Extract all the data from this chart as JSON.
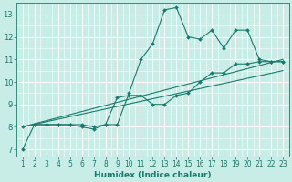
{
  "xlabel": "Humidex (Indice chaleur)",
  "bg_color": "#c8ece6",
  "line_color": "#1a7a6e",
  "grid_color": "#ffffff",
  "xlim": [
    0.5,
    23.5
  ],
  "ylim": [
    6.7,
    13.5
  ],
  "xticks": [
    1,
    2,
    3,
    4,
    5,
    6,
    7,
    8,
    9,
    10,
    11,
    12,
    13,
    14,
    15,
    16,
    17,
    18,
    19,
    20,
    21,
    22,
    23
  ],
  "yticks": [
    7,
    8,
    9,
    10,
    11,
    12,
    13
  ],
  "series1_x": [
    1,
    2,
    3,
    4,
    5,
    6,
    7,
    8,
    9,
    10,
    11,
    12,
    13,
    14,
    15,
    16,
    17,
    18,
    19,
    20,
    21,
    22,
    23
  ],
  "series1_y": [
    7.0,
    8.1,
    8.1,
    8.1,
    8.1,
    8.0,
    7.9,
    8.1,
    8.1,
    9.5,
    11.0,
    11.7,
    13.2,
    13.3,
    12.0,
    11.9,
    12.3,
    11.5,
    12.3,
    12.3,
    11.0,
    10.9,
    10.9
  ],
  "series2_x": [
    1,
    2,
    3,
    4,
    5,
    6,
    7,
    8,
    9,
    10,
    11,
    12,
    13,
    14,
    15,
    16,
    17,
    18,
    19,
    20,
    21,
    22,
    23
  ],
  "series2_y": [
    8.0,
    8.1,
    8.1,
    8.1,
    8.1,
    8.1,
    8.0,
    8.1,
    9.3,
    9.4,
    9.4,
    9.0,
    9.0,
    9.4,
    9.5,
    10.0,
    10.4,
    10.4,
    10.8,
    10.8,
    10.9,
    10.9,
    10.9
  ],
  "series3_x": [
    1,
    23
  ],
  "series3_y": [
    8.0,
    11.0
  ],
  "series4_x": [
    1,
    23
  ],
  "series4_y": [
    8.0,
    10.5
  ],
  "xlabel_fontsize": 6.5,
  "tick_fontsize": 5.5
}
